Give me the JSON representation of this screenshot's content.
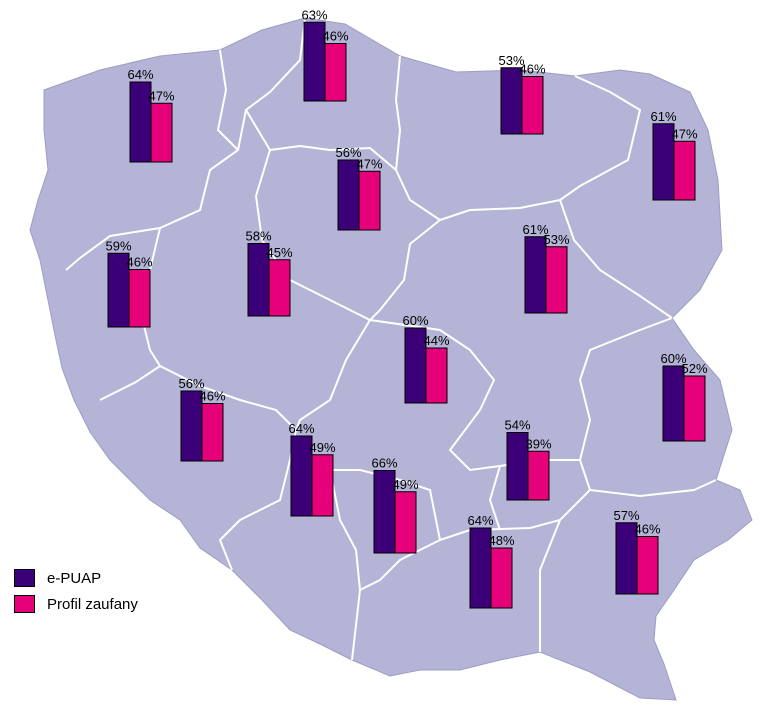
{
  "map": {
    "fill": "#b3b4d6",
    "border": "#ffffff"
  },
  "chart_data": {
    "type": "bar",
    "series": [
      {
        "name": "e-PUAP",
        "color": "#3b0078"
      },
      {
        "name": "Profil zaufany",
        "color": "#e6007a"
      }
    ],
    "regions": [
      {
        "values": [
          64,
          47
        ]
      },
      {
        "values": [
          63,
          46
        ]
      },
      {
        "values": [
          53,
          46
        ]
      },
      {
        "values": [
          61,
          47
        ]
      },
      {
        "values": [
          56,
          47
        ]
      },
      {
        "values": [
          59,
          46
        ]
      },
      {
        "values": [
          58,
          45
        ]
      },
      {
        "values": [
          61,
          53
        ]
      },
      {
        "values": [
          60,
          44
        ]
      },
      {
        "values": [
          60,
          52
        ]
      },
      {
        "values": [
          56,
          46
        ]
      },
      {
        "values": [
          64,
          49
        ]
      },
      {
        "values": [
          66,
          49
        ]
      },
      {
        "values": [
          54,
          39
        ]
      },
      {
        "values": [
          64,
          48
        ]
      },
      {
        "values": [
          57,
          46
        ]
      }
    ],
    "value_suffix": "%"
  },
  "legend": {
    "items": [
      "e-PUAP",
      "Profil zaufany"
    ]
  }
}
